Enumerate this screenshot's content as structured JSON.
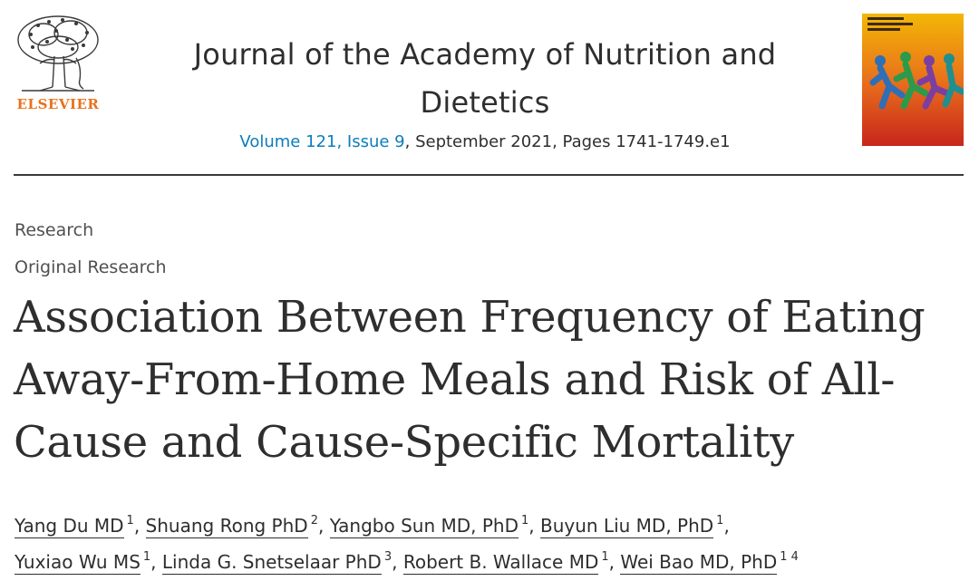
{
  "publisher": {
    "logo_text": "ELSEVIER"
  },
  "journal": {
    "title": "Journal of the Academy of Nutrition and Dietetics",
    "volume_link": "Volume 121, Issue 9",
    "meta_rest": ", September 2021, Pages 1741-1749.e1"
  },
  "cover": {
    "icon": "journal-cover-icon",
    "colors": [
      "#f2b705",
      "#e9711c",
      "#c8261c"
    ]
  },
  "article": {
    "section": "Research",
    "subsection": "Original Research",
    "title": "Association Between Frequency of Eating Away-From-Home Meals and Risk of All-Cause and Cause-Specific Mortality"
  },
  "authors": [
    {
      "name": "Yang Du MD",
      "sup": "1",
      "sep": ", "
    },
    {
      "name": "Shuang Rong PhD",
      "sup": "2",
      "sep": ", "
    },
    {
      "name": "Yangbo Sun MD, PhD",
      "sup": "1",
      "sep": ", "
    },
    {
      "name": "Buyun Liu MD, PhD",
      "sup": "1",
      "sep": ","
    },
    {
      "name": "Yuxiao Wu MS",
      "sup": "1",
      "sep": ", "
    },
    {
      "name": "Linda G. Snetselaar PhD",
      "sup": "3",
      "sep": ", "
    },
    {
      "name": "Robert B. Wallace MD",
      "sup": "1",
      "sep": ", "
    },
    {
      "name": "Wei Bao MD, PhD",
      "sup": "1 4",
      "sep": ""
    }
  ],
  "colors": {
    "link": "#0c7dbb",
    "elsevier_orange": "#e9711c",
    "text": "#2e2e2e"
  }
}
